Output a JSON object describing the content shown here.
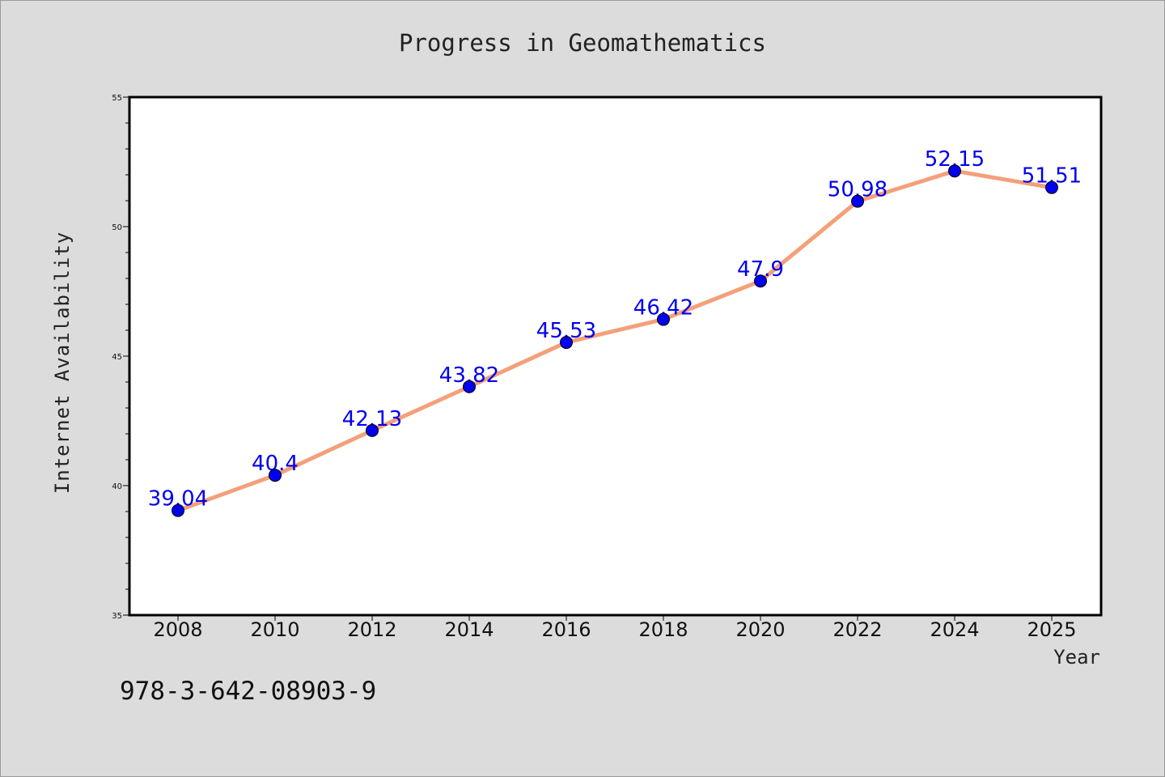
{
  "chart_data": {
    "type": "line",
    "title": "Progress in Geomathematics",
    "xlabel": "Year",
    "ylabel": "Internet Availability",
    "categories": [
      "2008",
      "2010",
      "2012",
      "2014",
      "2016",
      "2018",
      "2020",
      "2022",
      "2024",
      "2025"
    ],
    "series": [
      {
        "values": [
          39.04,
          40.4,
          42.13,
          43.82,
          45.53,
          46.42,
          47.9,
          50.98,
          52.15,
          51.51
        ],
        "labels": [
          "39.04",
          "40.4",
          "42.13",
          "43.82",
          "45.53",
          "46.42",
          "47.9",
          "50.98",
          "52.15",
          "51.51"
        ]
      }
    ],
    "ylim": [
      35,
      55
    ],
    "yticks": [
      "35",
      "40",
      "45",
      "50",
      "55"
    ],
    "grid": false,
    "legend": "none",
    "colors": {
      "line": "#f4a07a",
      "marker": "#0000ee",
      "label": "#0000ee",
      "background": "#dcdcdc",
      "plot_background": "#ffffff"
    }
  },
  "annotation": "978-3-642-08903-9"
}
